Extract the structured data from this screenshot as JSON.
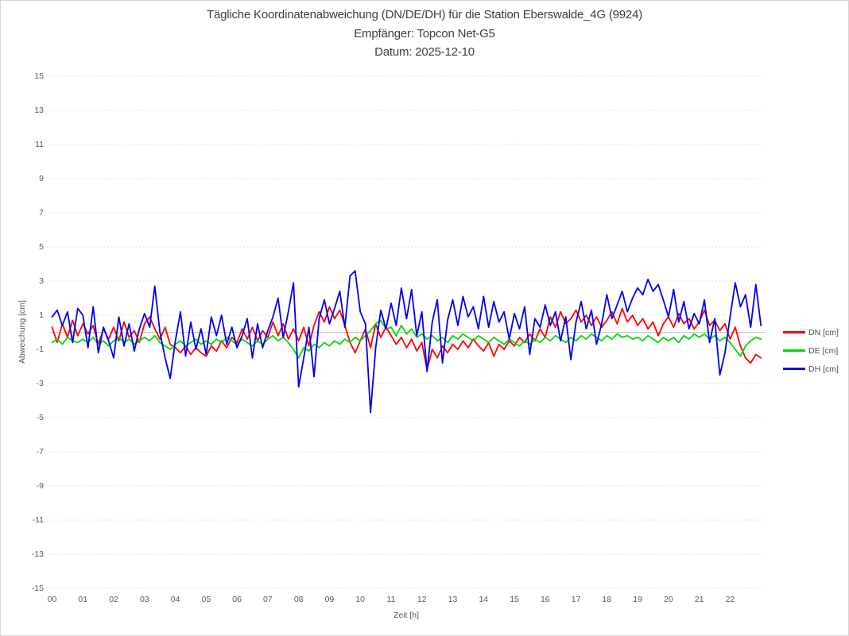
{
  "chart_data": {
    "type": "line",
    "title": "Tägliche Koordinatenabweichung (DN/DE/DH) für die Station Eberswalde_4G (9924)",
    "subtitle": "Empfänger: Topcon Net-G5",
    "date_line": "Datum: 2025-12-10",
    "xlabel": "Zeit [h]",
    "ylabel": "Abweichung [cm]",
    "xlim": [
      0,
      23.2
    ],
    "ylim": [
      -15,
      15
    ],
    "x_ticks": [
      "00",
      "01",
      "02",
      "03",
      "04",
      "05",
      "06",
      "07",
      "08",
      "09",
      "10",
      "11",
      "12",
      "13",
      "14",
      "15",
      "16",
      "17",
      "18",
      "19",
      "20",
      "21",
      "22"
    ],
    "y_ticks": [
      15,
      13,
      11,
      9,
      7,
      5,
      3,
      1,
      -1,
      -3,
      -5,
      -7,
      -9,
      -11,
      -13,
      -15
    ],
    "grid": "horizontal dotted gridlines at odd values, solid light line at 0, no vertical gridlines",
    "legend_position": "right-center",
    "sample_interval_hours": 0.166667,
    "start_hour": 0,
    "colors": {
      "grid_dotted": "#d9d9d9",
      "zero_line": "#c8c8c8",
      "tick_text": "#595959",
      "title_text": "#3d3d3d"
    },
    "series": [
      {
        "name": "DN [cm]",
        "color": "#ff0000",
        "values": [
          0.3,
          -0.6,
          0.5,
          -0.3,
          0.7,
          -0.2,
          0.5,
          -0.1,
          0.4,
          -0.7,
          0.2,
          -0.4,
          0.3,
          -0.5,
          0.6,
          -0.3,
          0.1,
          -0.6,
          0.5,
          0.9,
          0.2,
          -0.4,
          0.3,
          -0.7,
          -0.9,
          -1.2,
          -0.8,
          -1.3,
          -0.9,
          -1.2,
          -1.4,
          -0.8,
          -1.1,
          -0.5,
          -0.9,
          -0.3,
          -0.6,
          0.2,
          -0.4,
          0.3,
          -0.5,
          0.1,
          -0.3,
          0.6,
          -0.2,
          0.5,
          -0.4,
          0.2,
          -0.5,
          0.3,
          -0.8,
          0.4,
          1.2,
          0.6,
          1.5,
          0.8,
          1.3,
          0.4,
          -0.6,
          -1.2,
          -0.5,
          0.2,
          -0.9,
          0.5,
          -0.3,
          0.3,
          -0.2,
          -0.7,
          -0.3,
          -0.9,
          -0.4,
          -1.1,
          -0.6,
          -2.2,
          -1.0,
          -1.5,
          -0.8,
          -1.2,
          -0.7,
          -1.0,
          -0.5,
          -0.9,
          -0.4,
          -0.8,
          -1.1,
          -0.6,
          -1.4,
          -0.7,
          -1.0,
          -0.5,
          -0.8,
          -0.3,
          -0.6,
          -0.1,
          -0.5,
          0.2,
          -0.3,
          0.9,
          0.3,
          1.2,
          0.5,
          0.8,
          1.3,
          0.6,
          1.0,
          0.4,
          0.9,
          0.3,
          0.7,
          1.2,
          0.5,
          1.4,
          0.6,
          1.0,
          0.4,
          0.8,
          0.2,
          0.6,
          -0.2,
          0.5,
          0.9,
          0.3,
          1.1,
          0.5,
          0.8,
          0.2,
          0.6,
          1.3,
          0.4,
          0.7,
          0.1,
          0.5,
          -0.4,
          0.3,
          -0.8,
          -1.5,
          -1.8,
          -1.3,
          -1.5
        ]
      },
      {
        "name": "DE [cm]",
        "color": "#00d800",
        "values": [
          -0.6,
          -0.4,
          -0.7,
          -0.3,
          -0.5,
          -0.6,
          -0.4,
          -0.6,
          -0.3,
          -0.7,
          -0.5,
          -0.8,
          -0.5,
          -0.3,
          -0.6,
          -0.4,
          -0.7,
          -0.5,
          -0.3,
          -0.5,
          -0.2,
          -0.6,
          -0.8,
          -1.0,
          -0.7,
          -0.5,
          -0.8,
          -0.6,
          -0.4,
          -0.7,
          -0.5,
          -0.7,
          -0.4,
          -0.6,
          -0.3,
          -0.5,
          -0.7,
          -0.4,
          -0.6,
          -0.8,
          -0.5,
          -0.7,
          -0.4,
          -0.2,
          -0.5,
          -0.3,
          -0.6,
          -1.0,
          -1.5,
          -0.9,
          -1.1,
          -0.7,
          -0.9,
          -0.6,
          -0.8,
          -0.5,
          -0.7,
          -0.4,
          -0.6,
          -0.3,
          -0.5,
          -0.2,
          0.1,
          0.5,
          0.7,
          0.2,
          0.3,
          -0.2,
          0.4,
          -0.1,
          0.2,
          -0.3,
          -0.1,
          -0.4,
          -0.2,
          -0.5,
          -0.3,
          -0.6,
          -0.2,
          -0.4,
          -0.1,
          -0.3,
          -0.5,
          -0.2,
          -0.4,
          -0.6,
          -0.3,
          -0.5,
          -0.7,
          -0.4,
          -0.6,
          -0.8,
          -0.5,
          -0.7,
          -0.4,
          -0.6,
          -0.3,
          -0.5,
          -0.2,
          -0.4,
          -0.6,
          -0.3,
          -0.5,
          -0.2,
          -0.4,
          -0.1,
          -0.3,
          -0.5,
          -0.2,
          -0.4,
          -0.1,
          -0.3,
          -0.2,
          -0.4,
          -0.3,
          -0.5,
          -0.2,
          -0.4,
          -0.6,
          -0.3,
          -0.5,
          -0.3,
          -0.6,
          -0.2,
          -0.4,
          -0.1,
          -0.3,
          -0.1,
          -0.4,
          -0.2,
          -0.5,
          -0.3,
          -0.6,
          -1.0,
          -1.4,
          -0.8,
          -0.5,
          -0.3,
          -0.4
        ]
      },
      {
        "name": "DH [cm]",
        "color": "#0000ee",
        "values": [
          0.9,
          1.3,
          0.4,
          1.2,
          -0.6,
          1.4,
          1.0,
          -0.9,
          1.5,
          -1.2,
          0.3,
          -0.5,
          -1.5,
          0.9,
          -0.8,
          0.5,
          -1.1,
          0.2,
          1.1,
          0.3,
          2.7,
          0.0,
          -1.5,
          -2.7,
          -0.5,
          1.2,
          -1.4,
          0.6,
          -1.0,
          0.2,
          -1.3,
          0.9,
          -0.2,
          1.0,
          -0.7,
          0.3,
          -0.9,
          -0.2,
          0.8,
          -1.5,
          0.5,
          -0.9,
          0.1,
          0.9,
          2.0,
          -0.3,
          1.2,
          2.9,
          -3.2,
          -1.5,
          0.3,
          -2.6,
          0.8,
          1.9,
          0.5,
          1.4,
          2.4,
          0.3,
          3.3,
          3.6,
          1.2,
          0.5,
          -4.7,
          -0.9,
          1.3,
          0.2,
          1.7,
          0.4,
          2.6,
          0.8,
          2.5,
          -0.2,
          1.2,
          -2.3,
          0.6,
          1.9,
          -1.8,
          0.7,
          1.9,
          0.4,
          2.1,
          0.9,
          1.5,
          0.2,
          2.1,
          0.3,
          1.8,
          0.6,
          1.2,
          -0.4,
          1.1,
          0.2,
          1.5,
          -1.3,
          0.8,
          0.3,
          1.6,
          0.4,
          1.2,
          -0.5,
          0.9,
          -1.6,
          0.6,
          1.8,
          0.2,
          1.3,
          -0.7,
          0.5,
          2.2,
          0.8,
          1.6,
          2.4,
          1.2,
          2.0,
          2.6,
          2.2,
          3.1,
          2.4,
          2.8,
          1.9,
          0.9,
          2.5,
          0.6,
          1.8,
          0.2,
          1.1,
          0.5,
          1.9,
          -0.6,
          0.8,
          -2.5,
          -1.2,
          0.9,
          2.9,
          1.5,
          2.2,
          0.3,
          2.8,
          0.4
        ]
      }
    ]
  }
}
